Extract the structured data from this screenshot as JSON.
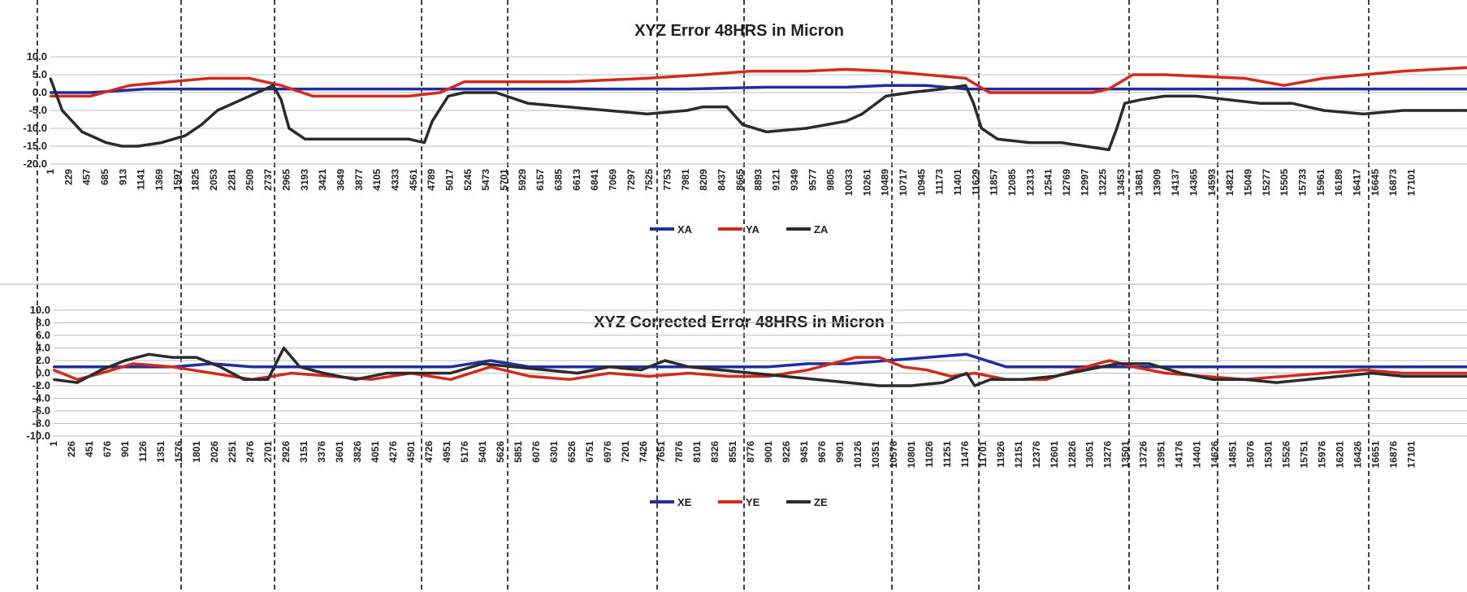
{
  "chart_data": [
    {
      "type": "line",
      "title": "XYZ  Error 48HRS in Micron",
      "xlabel": "",
      "ylabel": "",
      "ylim": [
        -20,
        10
      ],
      "yticks": [
        "10.0",
        "5.0",
        "0.0",
        "-5.0",
        "-10.0",
        "-15.0",
        "-20.0"
      ],
      "xlim": [
        1,
        17800
      ],
      "xticks": [
        1,
        229,
        457,
        685,
        913,
        1141,
        1369,
        1597,
        1825,
        2053,
        2281,
        2509,
        2737,
        2965,
        3193,
        3421,
        3649,
        3877,
        4105,
        4333,
        4561,
        4789,
        5017,
        5245,
        5473,
        5701,
        5929,
        6157,
        6385,
        6613,
        6841,
        7069,
        7297,
        7525,
        7753,
        7981,
        8209,
        8437,
        8665,
        8893,
        9121,
        9349,
        9577,
        9805,
        10033,
        10261,
        10489,
        10717,
        10945,
        11173,
        11401,
        11629,
        11857,
        12085,
        12313,
        12541,
        12769,
        12997,
        13225,
        13453,
        13681,
        13909,
        14137,
        14365,
        14593,
        14821,
        15049,
        15277,
        15505,
        15733,
        15961,
        16189,
        16417,
        16645,
        16873,
        17101
      ],
      "legend_position": "bottom",
      "grid": true,
      "series": [
        {
          "name": "XA",
          "color": "#1f2f9f",
          "x": [
            1,
            500,
            1200,
            1800,
            2400,
            3000,
            4000,
            5000,
            6000,
            7000,
            8000,
            9000,
            10000,
            10500,
            11000,
            11500,
            12000,
            13000,
            14000,
            15000,
            16000,
            17800
          ],
          "y": [
            0,
            0,
            1,
            1,
            1,
            1,
            1,
            1,
            1,
            1,
            1,
            1.5,
            1.5,
            2,
            2,
            1,
            1,
            1,
            1,
            1,
            1,
            1
          ]
        },
        {
          "name": "YA",
          "color": "#d42a1c",
          "x": [
            1,
            500,
            1000,
            1500,
            2000,
            2500,
            2900,
            3300,
            3800,
            4500,
            4900,
            5200,
            5600,
            6500,
            7500,
            8200,
            8800,
            9500,
            10000,
            10500,
            11000,
            11500,
            11800,
            12500,
            13100,
            13300,
            13600,
            14000,
            15000,
            15500,
            16000,
            16500,
            17000,
            17800
          ],
          "y": [
            -1,
            -1,
            2,
            3,
            4,
            4,
            2,
            -1,
            -1,
            -1,
            0,
            3,
            3,
            3,
            4,
            5,
            6,
            6,
            6.5,
            6,
            5,
            4,
            0,
            0,
            0,
            1,
            5,
            5,
            4,
            2,
            4,
            5,
            6,
            7
          ]
        },
        {
          "name": "ZA",
          "color": "#2b2b2b",
          "x": [
            1,
            150,
            400,
            700,
            900,
            1100,
            1400,
            1700,
            1900,
            2100,
            2400,
            2700,
            2800,
            2900,
            3000,
            3200,
            3500,
            4000,
            4500,
            4700,
            4800,
            5000,
            5200,
            5600,
            6000,
            6500,
            7000,
            7500,
            8000,
            8200,
            8500,
            8700,
            9000,
            9500,
            10000,
            10200,
            10500,
            10800,
            11200,
            11500,
            11600,
            11700,
            11900,
            12300,
            12700,
            13000,
            13300,
            13400,
            13500,
            13700,
            14000,
            14400,
            14800,
            15200,
            15600,
            16000,
            16500,
            17000,
            17800
          ],
          "y": [
            4,
            -5,
            -11,
            -14,
            -15,
            -15,
            -14,
            -12,
            -9,
            -5,
            -2,
            1,
            2,
            -2,
            -10,
            -13,
            -13,
            -13,
            -13,
            -14,
            -8,
            -1,
            0,
            0,
            -3,
            -4,
            -5,
            -6,
            -5,
            -4,
            -4,
            -9,
            -11,
            -10,
            -8,
            -6,
            -1,
            0,
            1,
            2,
            -3,
            -10,
            -13,
            -14,
            -14,
            -15,
            -16,
            -10,
            -3,
            -2,
            -1,
            -1,
            -2,
            -3,
            -3,
            -5,
            -6,
            -5,
            -5
          ]
        }
      ]
    },
    {
      "type": "line",
      "title": "XYZ Corrected Error 48HRS in Micron",
      "xlabel": "",
      "ylabel": "",
      "ylim": [
        -10,
        10
      ],
      "yticks": [
        "10.0",
        "8.0",
        "6.0",
        "4.0",
        "2.0",
        "0.0",
        "-2.0",
        "-4.0",
        "-6.0",
        "-8.0",
        "-10.0"
      ],
      "xlim": [
        1,
        17800
      ],
      "xticks": [
        1,
        226,
        451,
        676,
        901,
        1126,
        1351,
        1576,
        1801,
        2026,
        2251,
        2476,
        2701,
        2926,
        3151,
        3376,
        3601,
        3826,
        4051,
        4276,
        4501,
        4726,
        4951,
        5176,
        5401,
        5626,
        5851,
        6076,
        6301,
        6526,
        6751,
        6976,
        7201,
        7426,
        7651,
        7876,
        8101,
        8326,
        8551,
        8776,
        9001,
        9226,
        9451,
        9676,
        9901,
        10126,
        10351,
        10576,
        10801,
        11026,
        11251,
        11476,
        11701,
        11926,
        12151,
        12376,
        12601,
        12826,
        13051,
        13276,
        13501,
        13726,
        13951,
        14176,
        14401,
        14626,
        14851,
        15076,
        15301,
        15526,
        15751,
        15976,
        16201,
        16426,
        16651,
        16876,
        17101
      ],
      "legend_position": "bottom",
      "grid": true,
      "series": [
        {
          "name": "XE",
          "color": "#1f2f9f",
          "x": [
            1,
            500,
            1000,
            1500,
            2000,
            2500,
            3000,
            4000,
            5000,
            5500,
            6000,
            7000,
            8000,
            9000,
            9500,
            10000,
            10500,
            11000,
            11500,
            12000,
            13000,
            14000,
            15000,
            16000,
            17000,
            17800
          ],
          "y": [
            1,
            1,
            1,
            1,
            1.5,
            1,
            1,
            1,
            1,
            2,
            1,
            1,
            1,
            1,
            1.5,
            1.5,
            2,
            2.5,
            3,
            1,
            1,
            1,
            1,
            1,
            1,
            1
          ]
        },
        {
          "name": "YE",
          "color": "#d42a1c",
          "x": [
            1,
            300,
            600,
            1000,
            1500,
            2000,
            2500,
            3000,
            3500,
            4000,
            4500,
            5000,
            5500,
            6000,
            6500,
            7000,
            7500,
            8000,
            8500,
            9000,
            9500,
            9800,
            10100,
            10400,
            10700,
            11000,
            11300,
            11600,
            12000,
            12500,
            13000,
            13300,
            13600,
            14000,
            14500,
            15000,
            15500,
            16000,
            16500,
            17000,
            17800
          ],
          "y": [
            0.5,
            -1,
            0,
            1.5,
            1,
            0,
            -1,
            0,
            -0.5,
            -1,
            0,
            -1,
            1,
            -0.5,
            -1,
            0,
            -0.5,
            0,
            -0.5,
            -0.5,
            0.5,
            1.5,
            2.5,
            2.5,
            1,
            0.5,
            -0.5,
            0,
            -1,
            -1,
            1,
            2,
            1,
            0,
            -0.5,
            -1,
            -0.5,
            0,
            0.5,
            0,
            0
          ]
        },
        {
          "name": "ZE",
          "color": "#2b2b2b",
          "x": [
            1,
            300,
            600,
            900,
            1200,
            1500,
            1800,
            2100,
            2400,
            2700,
            2900,
            3100,
            3400,
            3800,
            4200,
            4600,
            5000,
            5400,
            5800,
            6200,
            6600,
            7000,
            7400,
            7700,
            8000,
            8400,
            8800,
            9200,
            9600,
            10000,
            10400,
            10800,
            11200,
            11500,
            11600,
            11800,
            12200,
            12600,
            13000,
            13400,
            13800,
            14200,
            14600,
            15000,
            15400,
            15800,
            16200,
            16600,
            17000,
            17800
          ],
          "y": [
            -1,
            -1.5,
            0.5,
            2,
            3,
            2.5,
            2.5,
            1,
            -1,
            -1,
            4,
            1,
            0,
            -1,
            0,
            0,
            0,
            1.5,
            1,
            0.5,
            0,
            1,
            0.5,
            2,
            1,
            0.5,
            0,
            -0.5,
            -1,
            -1.5,
            -2,
            -2,
            -1.5,
            0,
            -2,
            -1,
            -1,
            -0.5,
            0.5,
            1.5,
            1.5,
            0,
            -1,
            -1,
            -1.5,
            -1,
            -0.5,
            0,
            -0.5,
            -0.5
          ]
        }
      ]
    }
  ]
}
